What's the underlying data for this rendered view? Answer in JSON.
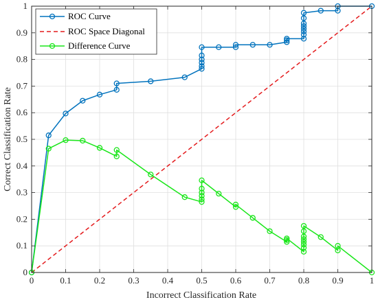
{
  "chart_data": {
    "type": "line",
    "title": "",
    "xlabel": "Incorrect Classification Rate",
    "ylabel": "Correct Classification Rate",
    "xlim": [
      0,
      1
    ],
    "ylim": [
      0,
      1
    ],
    "xticks": [
      0,
      0.1,
      0.2,
      0.3,
      0.4,
      0.5,
      0.6,
      0.7,
      0.8,
      0.9,
      1
    ],
    "yticks": [
      0,
      0.1,
      0.2,
      0.3,
      0.4,
      0.5,
      0.6,
      0.7,
      0.8,
      0.9,
      1
    ],
    "xtick_labels": [
      "0",
      "0.1",
      "0.2",
      "0.3",
      "0.4",
      "0.5",
      "0.6",
      "0.7",
      "0.8",
      "0.9",
      "1"
    ],
    "ytick_labels": [
      "0",
      "0.1",
      "0.2",
      "0.3",
      "0.4",
      "0.5",
      "0.6",
      "0.7",
      "0.8",
      "0.9",
      "1"
    ],
    "grid": true,
    "legend_position": "top-left",
    "series": [
      {
        "name": "ROC Curve",
        "color": "#0072BD",
        "line": "solid",
        "marker": "circle",
        "points": [
          [
            0,
            0
          ],
          [
            0.05,
            0.515
          ],
          [
            0.1,
            0.597
          ],
          [
            0.15,
            0.645
          ],
          [
            0.2,
            0.668
          ],
          [
            0.25,
            0.686
          ],
          [
            0.25,
            0.71
          ],
          [
            0.35,
            0.718
          ],
          [
            0.45,
            0.733
          ],
          [
            0.5,
            0.765
          ],
          [
            0.5,
            0.775
          ],
          [
            0.5,
            0.788
          ],
          [
            0.5,
            0.8
          ],
          [
            0.5,
            0.815
          ],
          [
            0.5,
            0.846
          ],
          [
            0.55,
            0.846
          ],
          [
            0.6,
            0.846
          ],
          [
            0.6,
            0.855
          ],
          [
            0.65,
            0.855
          ],
          [
            0.7,
            0.855
          ],
          [
            0.75,
            0.865
          ],
          [
            0.75,
            0.872
          ],
          [
            0.75,
            0.878
          ],
          [
            0.8,
            0.878
          ],
          [
            0.8,
            0.893
          ],
          [
            0.8,
            0.905
          ],
          [
            0.8,
            0.915
          ],
          [
            0.8,
            0.925
          ],
          [
            0.8,
            0.935
          ],
          [
            0.8,
            0.955
          ],
          [
            0.8,
            0.975
          ],
          [
            0.85,
            0.983
          ],
          [
            0.9,
            0.983
          ],
          [
            0.9,
            1
          ],
          [
            1,
            1
          ]
        ]
      },
      {
        "name": "ROC Space Diagonal",
        "color": "#E41A1C",
        "line": "dashed",
        "marker": "none",
        "points": [
          [
            0,
            0
          ],
          [
            1,
            1
          ]
        ]
      },
      {
        "name": "Difference Curve",
        "color": "#19E619",
        "line": "solid",
        "marker": "circle",
        "points": [
          [
            0,
            0
          ],
          [
            0.05,
            0.465
          ],
          [
            0.1,
            0.497
          ],
          [
            0.15,
            0.495
          ],
          [
            0.2,
            0.468
          ],
          [
            0.25,
            0.436
          ],
          [
            0.25,
            0.46
          ],
          [
            0.35,
            0.368
          ],
          [
            0.45,
            0.283
          ],
          [
            0.5,
            0.265
          ],
          [
            0.5,
            0.275
          ],
          [
            0.5,
            0.288
          ],
          [
            0.5,
            0.3
          ],
          [
            0.5,
            0.315
          ],
          [
            0.5,
            0.346
          ],
          [
            0.55,
            0.296
          ],
          [
            0.6,
            0.246
          ],
          [
            0.6,
            0.255
          ],
          [
            0.65,
            0.205
          ],
          [
            0.7,
            0.155
          ],
          [
            0.75,
            0.115
          ],
          [
            0.75,
            0.122
          ],
          [
            0.75,
            0.128
          ],
          [
            0.8,
            0.078
          ],
          [
            0.8,
            0.093
          ],
          [
            0.8,
            0.105
          ],
          [
            0.8,
            0.115
          ],
          [
            0.8,
            0.125
          ],
          [
            0.8,
            0.135
          ],
          [
            0.8,
            0.155
          ],
          [
            0.8,
            0.175
          ],
          [
            0.85,
            0.133
          ],
          [
            0.9,
            0.083
          ],
          [
            0.9,
            0.1
          ],
          [
            1,
            0
          ]
        ]
      }
    ]
  }
}
